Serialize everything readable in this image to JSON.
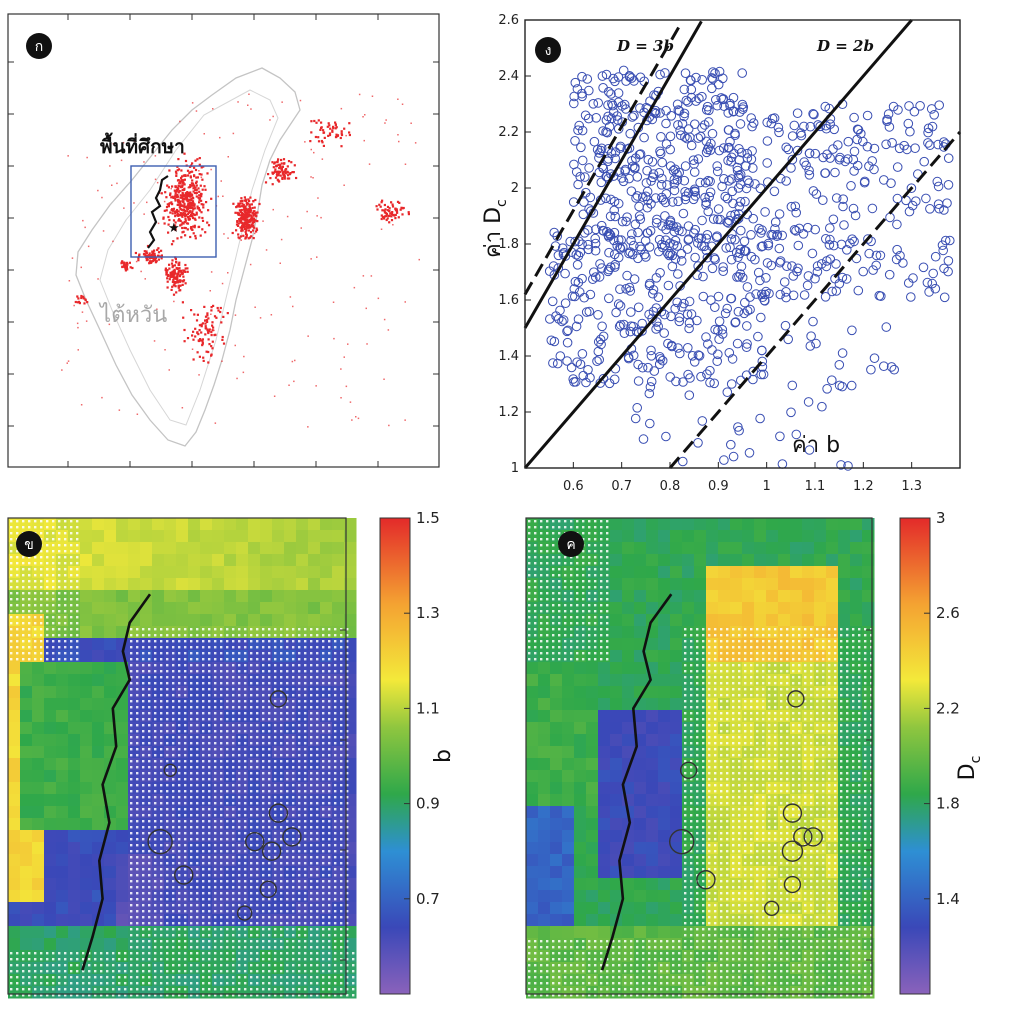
{
  "panels": {
    "a": {
      "letter": "ก",
      "region_label": "พื้นที่ศึกษา",
      "country_label": "ไต้หวัน"
    },
    "b": {
      "letter": "ข",
      "colorbar_label": "b",
      "colorbar_ticks": [
        "1.5",
        "1.3",
        "1.1",
        "0.9",
        "0.7"
      ]
    },
    "c": {
      "letter": "ค",
      "colorbar_label": "D",
      "colorbar_sub": "c",
      "colorbar_ticks": [
        "3",
        "2.6",
        "2.2",
        "1.8",
        "1.4"
      ]
    },
    "d": {
      "letter": "ง",
      "line_label_1": "D = 3b",
      "line_label_2": "D = 2b",
      "xlabel": "ค่า b",
      "ylabel": "ค่า D",
      "ylabel_sub": "c"
    }
  },
  "colors": {
    "scatter": "#3a4fb3",
    "seismicity": "#e8282b",
    "box": "#3d5fb0",
    "colormap": [
      "#7d5bb5",
      "#3a48b8",
      "#2e8fd4",
      "#2fa84a",
      "#8fc63f",
      "#f3e93a",
      "#f4a232",
      "#e32a2a"
    ]
  },
  "chart_data": [
    {
      "type": "scatter",
      "panel": "d",
      "xlabel": "ค่า b",
      "ylabel": "ค่า Dc",
      "xlim": [
        0.5,
        1.4
      ],
      "ylim": [
        1.0,
        2.6
      ],
      "xticks": [
        "0.6",
        "0.7",
        "0.8",
        "0.9",
        "1",
        "1.1",
        "1.2",
        "1.3"
      ],
      "yticks": [
        "1",
        "1.2",
        "1.4",
        "1.6",
        "1.8",
        "2",
        "2.2",
        "2.4",
        "2.6"
      ],
      "point_count": 950,
      "clusters": [
        {
          "x_range": [
            0.6,
            0.95
          ],
          "y_range": [
            1.75,
            2.42
          ],
          "share": 0.42
        },
        {
          "x_range": [
            0.55,
            1.0
          ],
          "y_range": [
            1.3,
            1.85
          ],
          "share": 0.3
        },
        {
          "x_range": [
            0.95,
            1.38
          ],
          "y_range": [
            1.6,
            2.3
          ],
          "share": 0.28
        }
      ],
      "reference_lines": [
        {
          "label": "D = 3b",
          "slope": 3,
          "intercept": 0,
          "style": "solid"
        },
        {
          "label": "D = 2b",
          "slope": 2,
          "intercept": 0,
          "style": "solid"
        },
        {
          "slope": 3,
          "intercept": 0.12,
          "style": "dashed"
        },
        {
          "slope": 2,
          "intercept": -0.6,
          "style": "dashed"
        }
      ]
    },
    {
      "type": "heatmap",
      "panel": "b",
      "colorbar_label": "b",
      "colorbar_range": [
        0.5,
        1.5
      ],
      "colorbar_ticks": [
        1.5,
        1.3,
        1.1,
        0.9,
        0.7
      ]
    },
    {
      "type": "heatmap",
      "panel": "c",
      "colorbar_label": "Dc",
      "colorbar_range": [
        1.0,
        3.0
      ],
      "colorbar_ticks": [
        3,
        2.6,
        2.2,
        1.8,
        1.4
      ]
    }
  ]
}
